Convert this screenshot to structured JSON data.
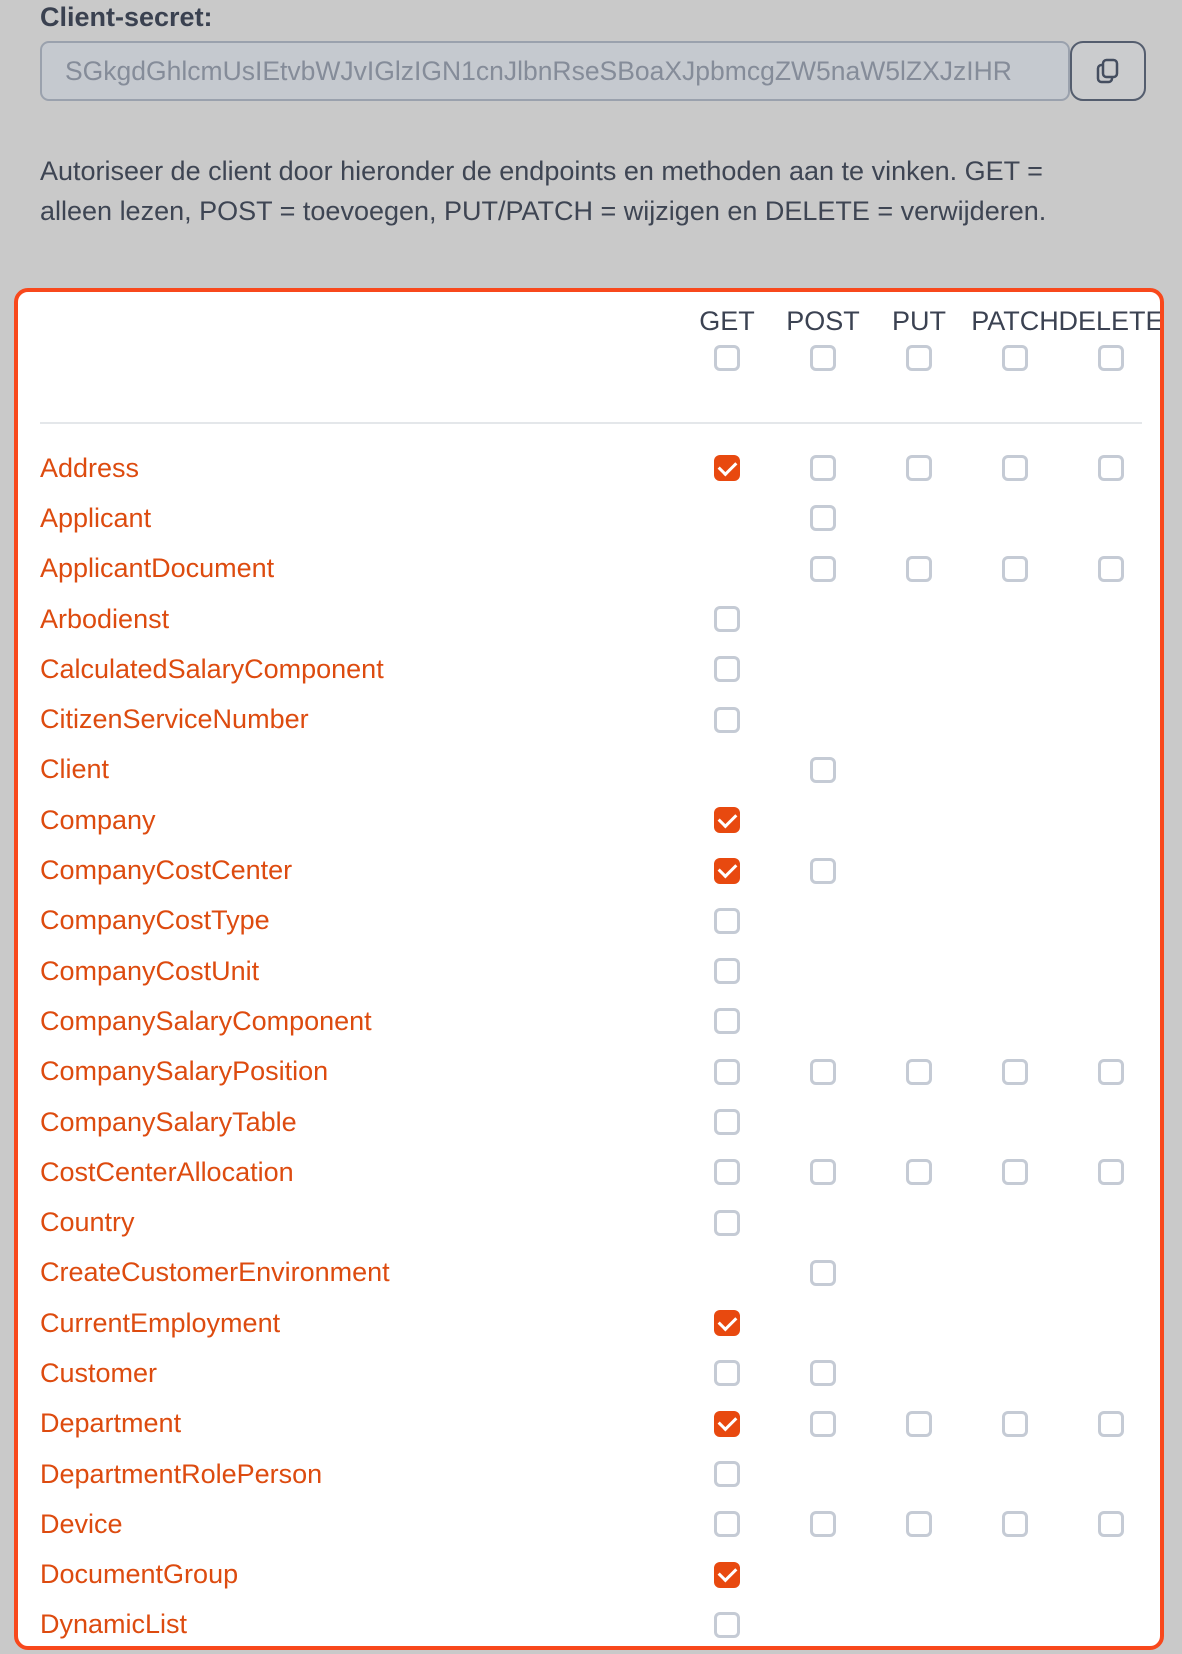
{
  "client_secret": {
    "label": "Client-secret:",
    "value": "SGkgdGhlcmUsIEtvbWJvIGlzIGN1cnJlbnRseSBoaXJpbmcgZW5naW5lZXJzIHR"
  },
  "instructions": {
    "lines": [
      "Autoriseer de client door hieronder de endpoints en methoden aan te vinken. GET =",
      "alleen lezen, POST = toevoegen, PUT/PATCH = wijzigen en DELETE = verwijderen."
    ]
  },
  "permissions_table": {
    "methods": [
      "GET",
      "POST",
      "PUT",
      "PATCH",
      "DELETE"
    ],
    "select_all": {
      "GET": "unchecked",
      "POST": "unchecked",
      "PUT": "unchecked",
      "PATCH": "unchecked",
      "DELETE": "unchecked"
    },
    "rows": [
      {
        "endpoint": "Address",
        "GET": "checked",
        "POST": "unchecked",
        "PUT": "unchecked",
        "PATCH": "unchecked",
        "DELETE": "unchecked"
      },
      {
        "endpoint": "Applicant",
        "GET": null,
        "POST": "unchecked",
        "PUT": null,
        "PATCH": null,
        "DELETE": null
      },
      {
        "endpoint": "ApplicantDocument",
        "GET": null,
        "POST": "unchecked",
        "PUT": "unchecked",
        "PATCH": "unchecked",
        "DELETE": "unchecked"
      },
      {
        "endpoint": "Arbodienst",
        "GET": "unchecked",
        "POST": null,
        "PUT": null,
        "PATCH": null,
        "DELETE": null
      },
      {
        "endpoint": "CalculatedSalaryComponent",
        "GET": "unchecked",
        "POST": null,
        "PUT": null,
        "PATCH": null,
        "DELETE": null
      },
      {
        "endpoint": "CitizenServiceNumber",
        "GET": "unchecked",
        "POST": null,
        "PUT": null,
        "PATCH": null,
        "DELETE": null
      },
      {
        "endpoint": "Client",
        "GET": null,
        "POST": "unchecked",
        "PUT": null,
        "PATCH": null,
        "DELETE": null
      },
      {
        "endpoint": "Company",
        "GET": "checked",
        "POST": null,
        "PUT": null,
        "PATCH": null,
        "DELETE": null
      },
      {
        "endpoint": "CompanyCostCenter",
        "GET": "checked",
        "POST": "unchecked",
        "PUT": null,
        "PATCH": null,
        "DELETE": null
      },
      {
        "endpoint": "CompanyCostType",
        "GET": "unchecked",
        "POST": null,
        "PUT": null,
        "PATCH": null,
        "DELETE": null
      },
      {
        "endpoint": "CompanyCostUnit",
        "GET": "unchecked",
        "POST": null,
        "PUT": null,
        "PATCH": null,
        "DELETE": null
      },
      {
        "endpoint": "CompanySalaryComponent",
        "GET": "unchecked",
        "POST": null,
        "PUT": null,
        "PATCH": null,
        "DELETE": null
      },
      {
        "endpoint": "CompanySalaryPosition",
        "GET": "unchecked",
        "POST": "unchecked",
        "PUT": "unchecked",
        "PATCH": "unchecked",
        "DELETE": "unchecked"
      },
      {
        "endpoint": "CompanySalaryTable",
        "GET": "unchecked",
        "POST": null,
        "PUT": null,
        "PATCH": null,
        "DELETE": null
      },
      {
        "endpoint": "CostCenterAllocation",
        "GET": "unchecked",
        "POST": "unchecked",
        "PUT": "unchecked",
        "PATCH": "unchecked",
        "DELETE": "unchecked"
      },
      {
        "endpoint": "Country",
        "GET": "unchecked",
        "POST": null,
        "PUT": null,
        "PATCH": null,
        "DELETE": null
      },
      {
        "endpoint": "CreateCustomerEnvironment",
        "GET": null,
        "POST": "unchecked",
        "PUT": null,
        "PATCH": null,
        "DELETE": null
      },
      {
        "endpoint": "CurrentEmployment",
        "GET": "checked",
        "POST": null,
        "PUT": null,
        "PATCH": null,
        "DELETE": null
      },
      {
        "endpoint": "Customer",
        "GET": "unchecked",
        "POST": "unchecked",
        "PUT": null,
        "PATCH": null,
        "DELETE": null
      },
      {
        "endpoint": "Department",
        "GET": "checked",
        "POST": "unchecked",
        "PUT": "unchecked",
        "PATCH": "unchecked",
        "DELETE": "unchecked"
      },
      {
        "endpoint": "DepartmentRolePerson",
        "GET": "unchecked",
        "POST": null,
        "PUT": null,
        "PATCH": null,
        "DELETE": null
      },
      {
        "endpoint": "Device",
        "GET": "unchecked",
        "POST": "unchecked",
        "PUT": "unchecked",
        "PATCH": "unchecked",
        "DELETE": "unchecked"
      },
      {
        "endpoint": "DocumentGroup",
        "GET": "checked",
        "POST": null,
        "PUT": null,
        "PATCH": null,
        "DELETE": null
      },
      {
        "endpoint": "DynamicList",
        "GET": "unchecked",
        "POST": null,
        "PUT": null,
        "PATCH": null,
        "DELETE": null
      }
    ],
    "colors": {
      "accent_checked": "#e8490f",
      "table_border": "#f8481c",
      "endpoint_link": "#dd4b0f",
      "checkbox_border": "#c5cbd5",
      "header_text": "#3b4252"
    }
  }
}
